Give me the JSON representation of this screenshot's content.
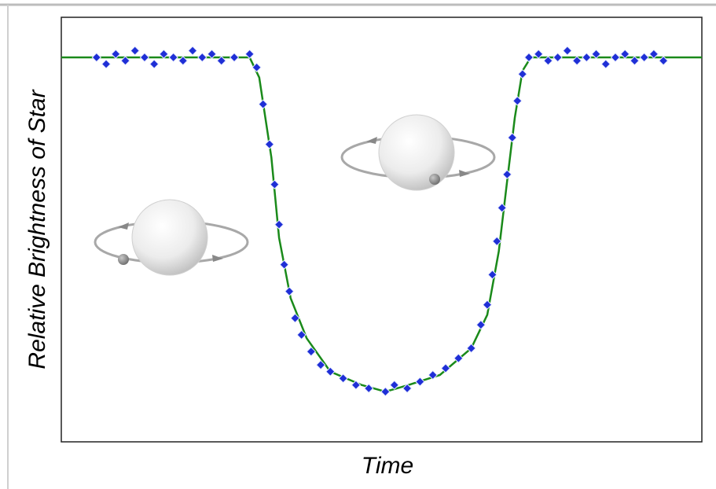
{
  "chart_data": {
    "type": "scatter",
    "xlabel": "Time",
    "ylabel": "Relative Brightness of Star",
    "xlim": [
      0,
      100
    ],
    "ylim": [
      -0.15,
      1.12
    ],
    "series": [
      {
        "type": "line",
        "color": "#1a8a1a",
        "x": [
          0,
          29.4,
          30.9,
          32.8,
          34.0,
          35.8,
          38.3,
          42.0,
          46.9,
          50.6,
          54.2,
          59.1,
          64.0,
          66.5,
          68.3,
          69.6,
          70.8,
          72.0,
          73.3,
          100
        ],
        "values": [
          1.0,
          1.0,
          0.94,
          0.7,
          0.46,
          0.28,
          0.16,
          0.06,
          0.02,
          0,
          0.02,
          0.05,
          0.13,
          0.23,
          0.42,
          0.63,
          0.82,
          0.96,
          1.0,
          1.0
        ]
      },
      {
        "type": "scatter",
        "color": "#1f2fd6",
        "x": [
          5.5,
          7,
          8.5,
          10,
          11.5,
          13,
          14.5,
          16,
          17.5,
          19,
          20.5,
          22,
          23.5,
          25,
          27,
          29.4,
          30.5,
          31.5,
          32.5,
          33.3,
          34,
          34.8,
          35.6,
          36.5,
          37.5,
          39,
          40.5,
          42,
          44,
          46,
          48,
          50.6,
          52,
          54,
          56,
          58,
          60,
          62,
          64,
          65.5,
          66.5,
          67.3,
          68,
          68.8,
          69.6,
          70.4,
          71.2,
          72,
          73,
          74.5,
          76,
          77.5,
          79,
          80.5,
          82,
          83.5,
          85,
          86.5,
          88,
          89.5,
          91,
          92.5,
          94
        ],
        "values": [
          1.0,
          0.98,
          1.01,
          0.99,
          1.02,
          1.0,
          0.98,
          1.01,
          1.0,
          0.99,
          1.02,
          1.0,
          1.01,
          0.99,
          1.0,
          1.01,
          0.97,
          0.86,
          0.74,
          0.62,
          0.5,
          0.38,
          0.3,
          0.22,
          0.17,
          0.12,
          0.08,
          0.06,
          0.04,
          0.02,
          0.01,
          0,
          0.02,
          0.01,
          0.03,
          0.05,
          0.07,
          0.1,
          0.13,
          0.2,
          0.26,
          0.35,
          0.45,
          0.55,
          0.65,
          0.76,
          0.87,
          0.95,
          1.0,
          1.01,
          0.99,
          1.0,
          1.02,
          0.99,
          1.0,
          1.01,
          0.98,
          1.0,
          1.01,
          0.99,
          1.0,
          1.01,
          0.99
        ]
      }
    ]
  }
}
